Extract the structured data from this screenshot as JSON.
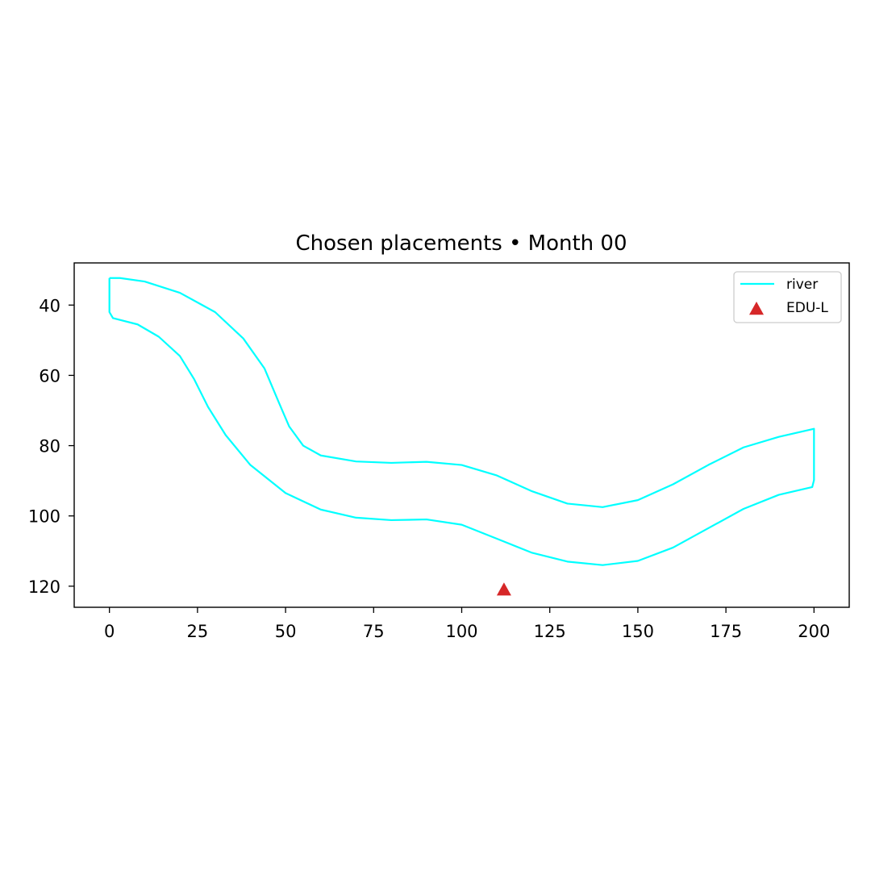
{
  "chart_data": {
    "type": "line",
    "title": "Chosen placements • Month 00",
    "xlabel": "",
    "ylabel": "",
    "xlim": [
      -10,
      210
    ],
    "ylim": [
      126,
      28
    ],
    "y_inverted": true,
    "xticks": [
      0,
      25,
      50,
      75,
      100,
      125,
      150,
      175,
      200
    ],
    "yticks": [
      40,
      60,
      80,
      100,
      120
    ],
    "grid": false,
    "legend_position": "top-right",
    "colors": {
      "river": "#00ffff",
      "edu": "#d62728"
    },
    "series": [
      {
        "name": "river",
        "kind": "line",
        "outline": [
          [
            0,
            32.3
          ],
          [
            3,
            32.3
          ],
          [
            10,
            33.3
          ],
          [
            20,
            36.5
          ],
          [
            30,
            42
          ],
          [
            38,
            49.5
          ],
          [
            44,
            58
          ],
          [
            48,
            67.5
          ],
          [
            51,
            74.5
          ],
          [
            55,
            80
          ],
          [
            60,
            82.8
          ],
          [
            70,
            84.5
          ],
          [
            80,
            84.9
          ],
          [
            90,
            84.6
          ],
          [
            100,
            85.5
          ],
          [
            110,
            88.5
          ],
          [
            120,
            93
          ],
          [
            130,
            96.5
          ],
          [
            140,
            97.5
          ],
          [
            150,
            95.5
          ],
          [
            160,
            91
          ],
          [
            170,
            85.5
          ],
          [
            180,
            80.5
          ],
          [
            190,
            77.5
          ],
          [
            200,
            75.2
          ],
          [
            200,
            89.8
          ],
          [
            199.5,
            91.8
          ],
          [
            190,
            94
          ],
          [
            180,
            98
          ],
          [
            170,
            103.5
          ],
          [
            160,
            109
          ],
          [
            150,
            112.8
          ],
          [
            140,
            114
          ],
          [
            130,
            113
          ],
          [
            120,
            110.5
          ],
          [
            110,
            106.5
          ],
          [
            100,
            102.5
          ],
          [
            90,
            101
          ],
          [
            80,
            101.2
          ],
          [
            70,
            100.5
          ],
          [
            60,
            98.2
          ],
          [
            50,
            93.5
          ],
          [
            40,
            85.5
          ],
          [
            33,
            77
          ],
          [
            28,
            69
          ],
          [
            24,
            61
          ],
          [
            20,
            54.5
          ],
          [
            14,
            49
          ],
          [
            8,
            45.5
          ],
          [
            1,
            43.7
          ],
          [
            0,
            42
          ],
          [
            0,
            32.3
          ]
        ]
      },
      {
        "name": "EDU-L",
        "kind": "scatter",
        "marker": "triangle",
        "points": [
          [
            112,
            121
          ]
        ]
      }
    ]
  }
}
